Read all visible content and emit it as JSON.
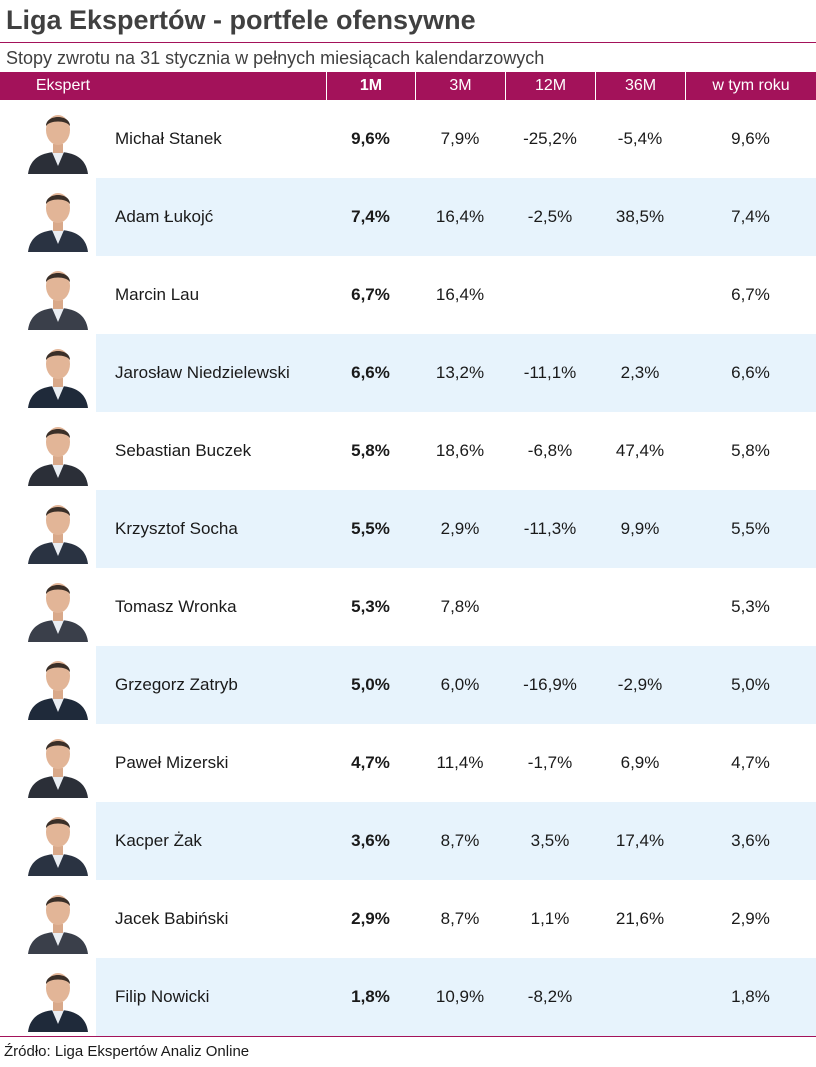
{
  "title": "Liga Ekspertów - portfele ofensywne",
  "subtitle": "Stopy zwrotu na 31 stycznia w pełnych miesiącach kalendarzowych",
  "columns": {
    "expert": "Ekspert",
    "m1": "1M",
    "m3": "3M",
    "m12": "12M",
    "m36": "36M",
    "ytd": "w tym roku"
  },
  "rows": [
    {
      "name": "Michał Stanek",
      "m1": "9,6%",
      "m3": "7,9%",
      "m12": "-25,2%",
      "m36": "-5,4%",
      "ytd": "9,6%"
    },
    {
      "name": "Adam Łukojć",
      "m1": "7,4%",
      "m3": "16,4%",
      "m12": "-2,5%",
      "m36": "38,5%",
      "ytd": "7,4%"
    },
    {
      "name": "Marcin Lau",
      "m1": "6,7%",
      "m3": "16,4%",
      "m12": "",
      "m36": "",
      "ytd": "6,7%"
    },
    {
      "name": "Jarosław Niedzielewski",
      "m1": "6,6%",
      "m3": "13,2%",
      "m12": "-11,1%",
      "m36": "2,3%",
      "ytd": "6,6%"
    },
    {
      "name": "Sebastian Buczek",
      "m1": "5,8%",
      "m3": "18,6%",
      "m12": "-6,8%",
      "m36": "47,4%",
      "ytd": "5,8%"
    },
    {
      "name": "Krzysztof Socha",
      "m1": "5,5%",
      "m3": "2,9%",
      "m12": "-11,3%",
      "m36": "9,9%",
      "ytd": "5,5%"
    },
    {
      "name": "Tomasz Wronka",
      "m1": "5,3%",
      "m3": "7,8%",
      "m12": "",
      "m36": "",
      "ytd": "5,3%"
    },
    {
      "name": "Grzegorz Zatryb",
      "m1": "5,0%",
      "m3": "6,0%",
      "m12": "-16,9%",
      "m36": "-2,9%",
      "ytd": "5,0%"
    },
    {
      "name": "Paweł Mizerski",
      "m1": "4,7%",
      "m3": "11,4%",
      "m12": "-1,7%",
      "m36": "6,9%",
      "ytd": "4,7%"
    },
    {
      "name": "Kacper Żak",
      "m1": "3,6%",
      "m3": "8,7%",
      "m12": "3,5%",
      "m36": "17,4%",
      "ytd": "3,6%"
    },
    {
      "name": "Jacek Babiński",
      "m1": "2,9%",
      "m3": "8,7%",
      "m12": "1,1%",
      "m36": "21,6%",
      "ytd": "2,9%"
    },
    {
      "name": "Filip Nowicki",
      "m1": "1,8%",
      "m3": "10,9%",
      "m12": "-8,2%",
      "m36": "",
      "ytd": "1,8%"
    }
  ],
  "source": "Źródło: Liga Ekspertów Analiz Online",
  "colors": {
    "accent": "#a3125a",
    "row_alt": "#e7f3fc"
  }
}
